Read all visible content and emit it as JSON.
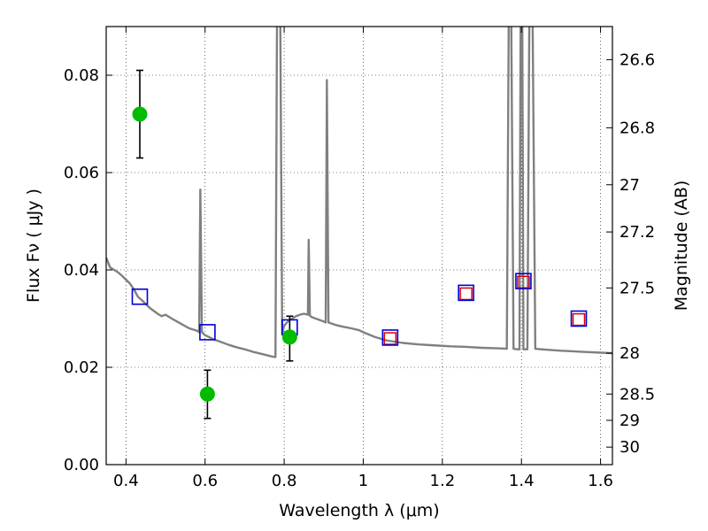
{
  "chart_data": {
    "type": "scatter",
    "title": "",
    "xlabel": "Wavelength  λ (μm)",
    "ylabel": "Flux  Fν  ( μJy )",
    "y2label": "Magnitude (AB)",
    "xlim": [
      0.35,
      1.63
    ],
    "ylim": [
      0.0,
      0.09
    ],
    "grid": true,
    "x_ticks": [
      0.4,
      0.6,
      0.8,
      1.0,
      1.2,
      1.4,
      1.6
    ],
    "x_tick_labels": [
      "0.4",
      "0.6",
      "0.8",
      "1",
      "1.2",
      "1.4",
      "1.6"
    ],
    "y_ticks": [
      0.0,
      0.02,
      0.04,
      0.06,
      0.08
    ],
    "y_tick_labels": [
      "0.00",
      "0.02",
      "0.04",
      "0.06",
      "0.08"
    ],
    "y2_ticks": [
      {
        "label": "26.6",
        "flux": 0.0832
      },
      {
        "label": "26.8",
        "flux": 0.0692
      },
      {
        "label": "27",
        "flux": 0.0575
      },
      {
        "label": "27.2",
        "flux": 0.0478
      },
      {
        "label": "27.5",
        "flux": 0.0363
      },
      {
        "label": "28",
        "flux": 0.0229
      },
      {
        "label": "28.5",
        "flux": 0.0145
      },
      {
        "label": "29",
        "flux": 0.0091
      },
      {
        "label": "30",
        "flux": 0.0036
      }
    ],
    "series": [
      {
        "role": "model-spectrum",
        "color": "#808080",
        "points": [
          [
            0.35,
            0.0425
          ],
          [
            0.36,
            0.0405
          ],
          [
            0.37,
            0.04
          ],
          [
            0.38,
            0.0395
          ],
          [
            0.39,
            0.0388
          ],
          [
            0.4,
            0.038
          ],
          [
            0.41,
            0.0372
          ],
          [
            0.42,
            0.036
          ],
          [
            0.43,
            0.0345
          ],
          [
            0.44,
            0.0338
          ],
          [
            0.46,
            0.0322
          ],
          [
            0.48,
            0.031
          ],
          [
            0.49,
            0.0305
          ],
          [
            0.5,
            0.0308
          ],
          [
            0.52,
            0.0298
          ],
          [
            0.54,
            0.0289
          ],
          [
            0.56,
            0.028
          ],
          [
            0.58,
            0.0275
          ],
          [
            0.585,
            0.0272
          ],
          [
            0.588,
            0.0565
          ],
          [
            0.592,
            0.0272
          ],
          [
            0.6,
            0.0266
          ],
          [
            0.62,
            0.0258
          ],
          [
            0.64,
            0.0252
          ],
          [
            0.66,
            0.0246
          ],
          [
            0.68,
            0.0241
          ],
          [
            0.7,
            0.0237
          ],
          [
            0.72,
            0.0232
          ],
          [
            0.74,
            0.0228
          ],
          [
            0.76,
            0.0224
          ],
          [
            0.77,
            0.0222
          ],
          [
            0.778,
            0.0221
          ],
          [
            0.782,
            0.0935
          ],
          [
            0.79,
            0.0935
          ],
          [
            0.795,
            0.027
          ],
          [
            0.8,
            0.0285
          ],
          [
            0.81,
            0.0295
          ],
          [
            0.82,
            0.03
          ],
          [
            0.83,
            0.0305
          ],
          [
            0.84,
            0.0308
          ],
          [
            0.85,
            0.031
          ],
          [
            0.86,
            0.0308
          ],
          [
            0.862,
            0.0462
          ],
          [
            0.865,
            0.0306
          ],
          [
            0.87,
            0.0303
          ],
          [
            0.88,
            0.03
          ],
          [
            0.89,
            0.0297
          ],
          [
            0.9,
            0.0294
          ],
          [
            0.905,
            0.0292
          ],
          [
            0.908,
            0.079
          ],
          [
            0.912,
            0.0292
          ],
          [
            0.93,
            0.0287
          ],
          [
            0.95,
            0.0283
          ],
          [
            0.97,
            0.028
          ],
          [
            0.99,
            0.0276
          ],
          [
            1.0,
            0.0272
          ],
          [
            1.03,
            0.0262
          ],
          [
            1.06,
            0.0255
          ],
          [
            1.1,
            0.025
          ],
          [
            1.14,
            0.0247
          ],
          [
            1.18,
            0.0245
          ],
          [
            1.22,
            0.0243
          ],
          [
            1.26,
            0.0242
          ],
          [
            1.3,
            0.024
          ],
          [
            1.34,
            0.0239
          ],
          [
            1.363,
            0.0238
          ],
          [
            1.368,
            0.0935
          ],
          [
            1.374,
            0.0935
          ],
          [
            1.38,
            0.0238
          ],
          [
            1.39,
            0.0237
          ],
          [
            1.395,
            0.0237
          ],
          [
            1.398,
            0.0935
          ],
          [
            1.402,
            0.0935
          ],
          [
            1.405,
            0.0237
          ],
          [
            1.415,
            0.0237
          ],
          [
            1.42,
            0.0935
          ],
          [
            1.428,
            0.0935
          ],
          [
            1.435,
            0.0238
          ],
          [
            1.45,
            0.0237
          ],
          [
            1.5,
            0.0234
          ],
          [
            1.55,
            0.0232
          ],
          [
            1.6,
            0.023
          ],
          [
            1.63,
            0.0229
          ]
        ]
      },
      {
        "role": "observed-photometry",
        "color": "#00bb00",
        "points": [
          {
            "x": 0.435,
            "y": 0.072,
            "yerr_low": 0.063,
            "yerr_high": 0.081
          },
          {
            "x": 0.606,
            "y": 0.0145,
            "yerr_low": 0.0095,
            "yerr_high": 0.0194
          },
          {
            "x": 0.814,
            "y": 0.0262,
            "yerr_low": 0.0213,
            "yerr_high": 0.0305
          }
        ]
      },
      {
        "role": "model-band-flux",
        "color": "#0000dd",
        "points": [
          {
            "x": 0.435,
            "y": 0.0345
          },
          {
            "x": 0.606,
            "y": 0.0272
          },
          {
            "x": 0.814,
            "y": 0.0282
          },
          {
            "x": 1.068,
            "y": 0.0261
          },
          {
            "x": 1.26,
            "y": 0.0353
          },
          {
            "x": 1.405,
            "y": 0.0377
          },
          {
            "x": 1.545,
            "y": 0.03
          }
        ]
      },
      {
        "role": "model-band-flux-alt",
        "color": "#dd0000",
        "points": [
          {
            "x": 1.068,
            "y": 0.0259
          },
          {
            "x": 1.26,
            "y": 0.0351
          },
          {
            "x": 1.405,
            "y": 0.0375
          },
          {
            "x": 1.545,
            "y": 0.0298
          }
        ]
      }
    ]
  }
}
